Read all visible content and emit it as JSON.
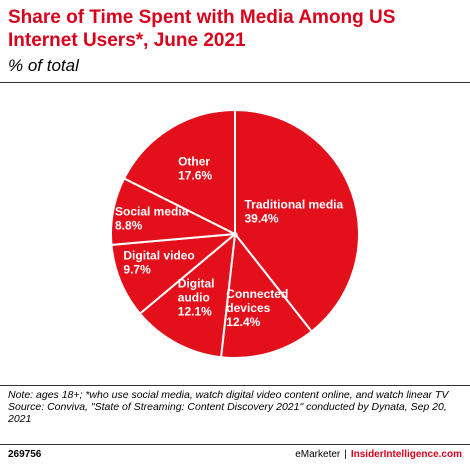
{
  "header": {
    "title": "Share of Time Spent with Media Among US Internet Users*, June 2021",
    "subtitle": "% of total"
  },
  "colors": {
    "slice": "#e3101c",
    "slice_border": "#ffffff",
    "accent": "#d9001b"
  },
  "chart_data": {
    "type": "pie",
    "title": "Share of Time Spent with Media Among US Internet Users*, June 2021",
    "subtitle": "% of total",
    "start": "12 o'clock",
    "direction": "clockwise",
    "slices": [
      {
        "label": "Traditional media",
        "value": 39.4,
        "value_label": "39.4%"
      },
      {
        "label": "Connected devices",
        "value": 12.4,
        "value_label": "12.4%"
      },
      {
        "label": "Digital audio",
        "value": 12.1,
        "value_label": "12.1%"
      },
      {
        "label": "Digital video",
        "value": 9.7,
        "value_label": "9.7%"
      },
      {
        "label": "Social media",
        "value": 8.8,
        "value_label": "8.8%"
      },
      {
        "label": "Other",
        "value": 17.6,
        "value_label": "17.6%"
      }
    ]
  },
  "notes": {
    "note": "Note: ages 18+; *who use social media, watch digital video content online, and watch linear TV",
    "source": "Source: Conviva, \"State of Streaming: Content Discovery 2021\" conducted by Dynata, Sep 20, 2021"
  },
  "footer": {
    "chart_id": "269756",
    "brand_left": "eMarketer",
    "separator": "|",
    "brand_right": "InsiderIntelligence.com"
  }
}
